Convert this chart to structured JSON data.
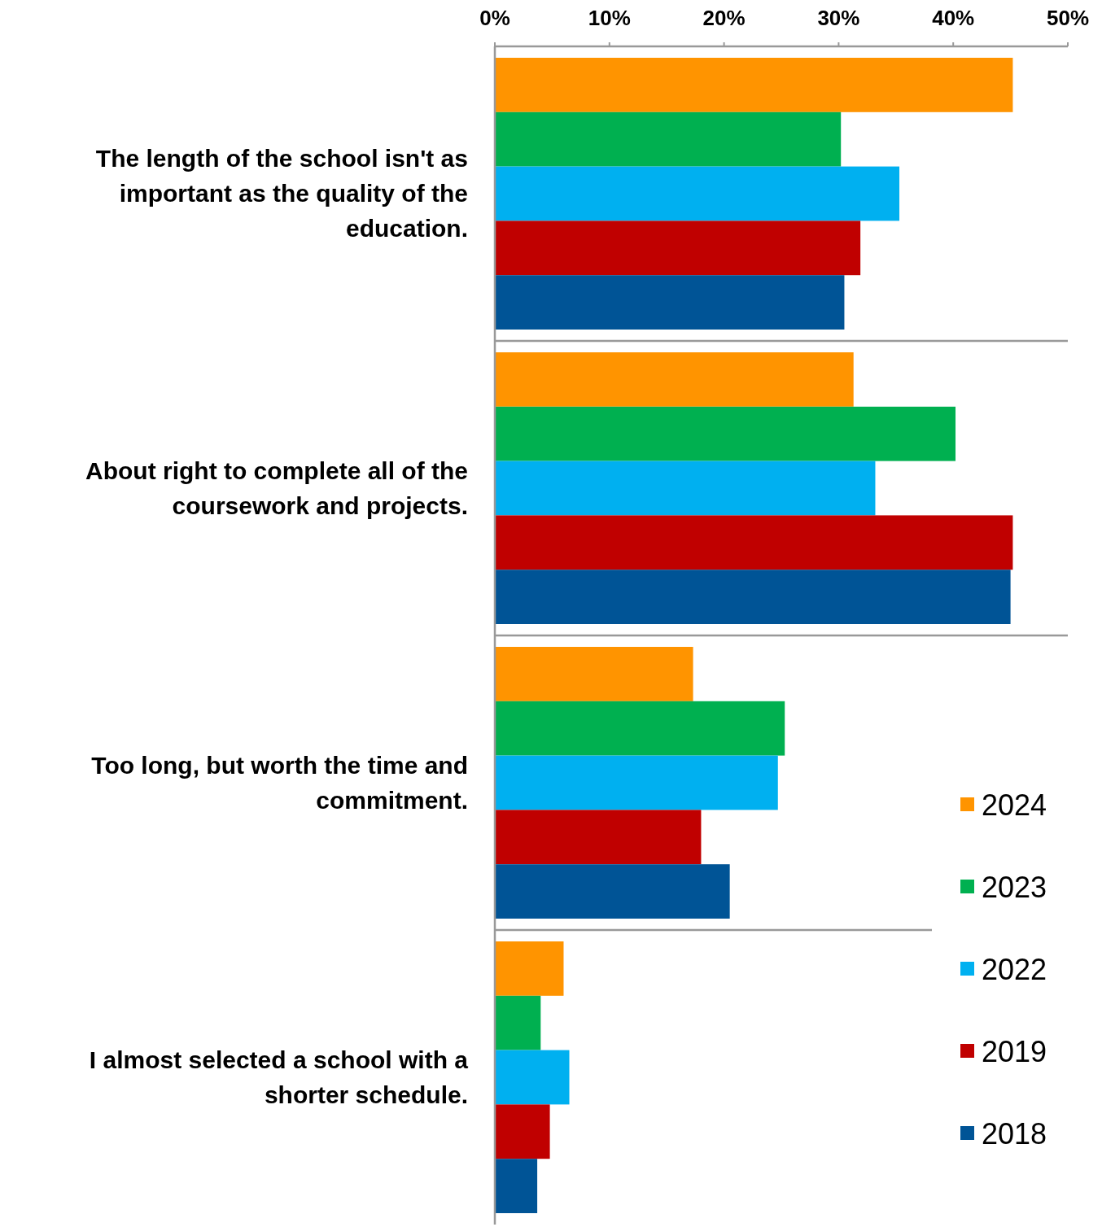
{
  "chart_data": {
    "type": "bar",
    "orientation": "horizontal",
    "categories": [
      "The length of the school isn't as important as the quality of the education.",
      "About right to complete all of the coursework and projects.",
      "Too long, but worth the time and commitment.",
      "I almost selected a school with a shorter schedule."
    ],
    "series": [
      {
        "name": "2024",
        "color": "#ff9400",
        "values": [
          45.2,
          31.3,
          17.3,
          6.0
        ]
      },
      {
        "name": "2023",
        "color": "#00b050",
        "values": [
          30.2,
          40.2,
          25.3,
          4.0
        ]
      },
      {
        "name": "2022",
        "color": "#00b0f0",
        "values": [
          35.3,
          33.2,
          24.7,
          6.5
        ]
      },
      {
        "name": "2019",
        "color": "#c00000",
        "values": [
          31.9,
          45.2,
          18.0,
          4.8
        ]
      },
      {
        "name": "2018",
        "color": "#005496",
        "values": [
          30.5,
          45.0,
          20.5,
          3.7
        ]
      }
    ],
    "xlim": [
      0,
      50
    ],
    "xticks": [
      {
        "value": 0,
        "label": "0%"
      },
      {
        "value": 10,
        "label": "10%"
      },
      {
        "value": 20,
        "label": "20%"
      },
      {
        "value": 30,
        "label": "30%"
      },
      {
        "value": 40,
        "label": "40%"
      },
      {
        "value": 50,
        "label": "50%"
      }
    ],
    "grid": "y",
    "legend": "bottom right"
  }
}
